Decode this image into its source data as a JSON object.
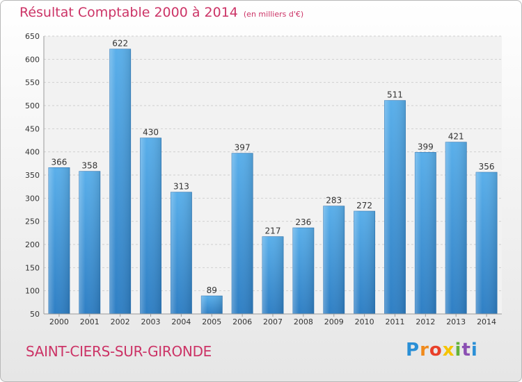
{
  "chart_data": {
    "type": "bar",
    "title": "Résultat Comptable 2000 à 2014",
    "subtitle": "(en milliers d'€)",
    "categories": [
      "2000",
      "2001",
      "2002",
      "2003",
      "2004",
      "2005",
      "2006",
      "2007",
      "2008",
      "2009",
      "2010",
      "2011",
      "2012",
      "2013",
      "2014"
    ],
    "values": [
      366,
      358,
      622,
      430,
      313,
      89,
      397,
      217,
      236,
      283,
      272,
      511,
      399,
      421,
      356
    ],
    "ylim": [
      50,
      650
    ],
    "yticks": [
      50,
      100,
      150,
      200,
      250,
      300,
      350,
      400,
      450,
      500,
      550,
      600,
      650
    ],
    "grid": true,
    "bar_color": "#4a9fe0"
  },
  "footer": {
    "commune": "SAINT-CIERS-SUR-GIRONDE",
    "logo_text": "Proxiti"
  }
}
